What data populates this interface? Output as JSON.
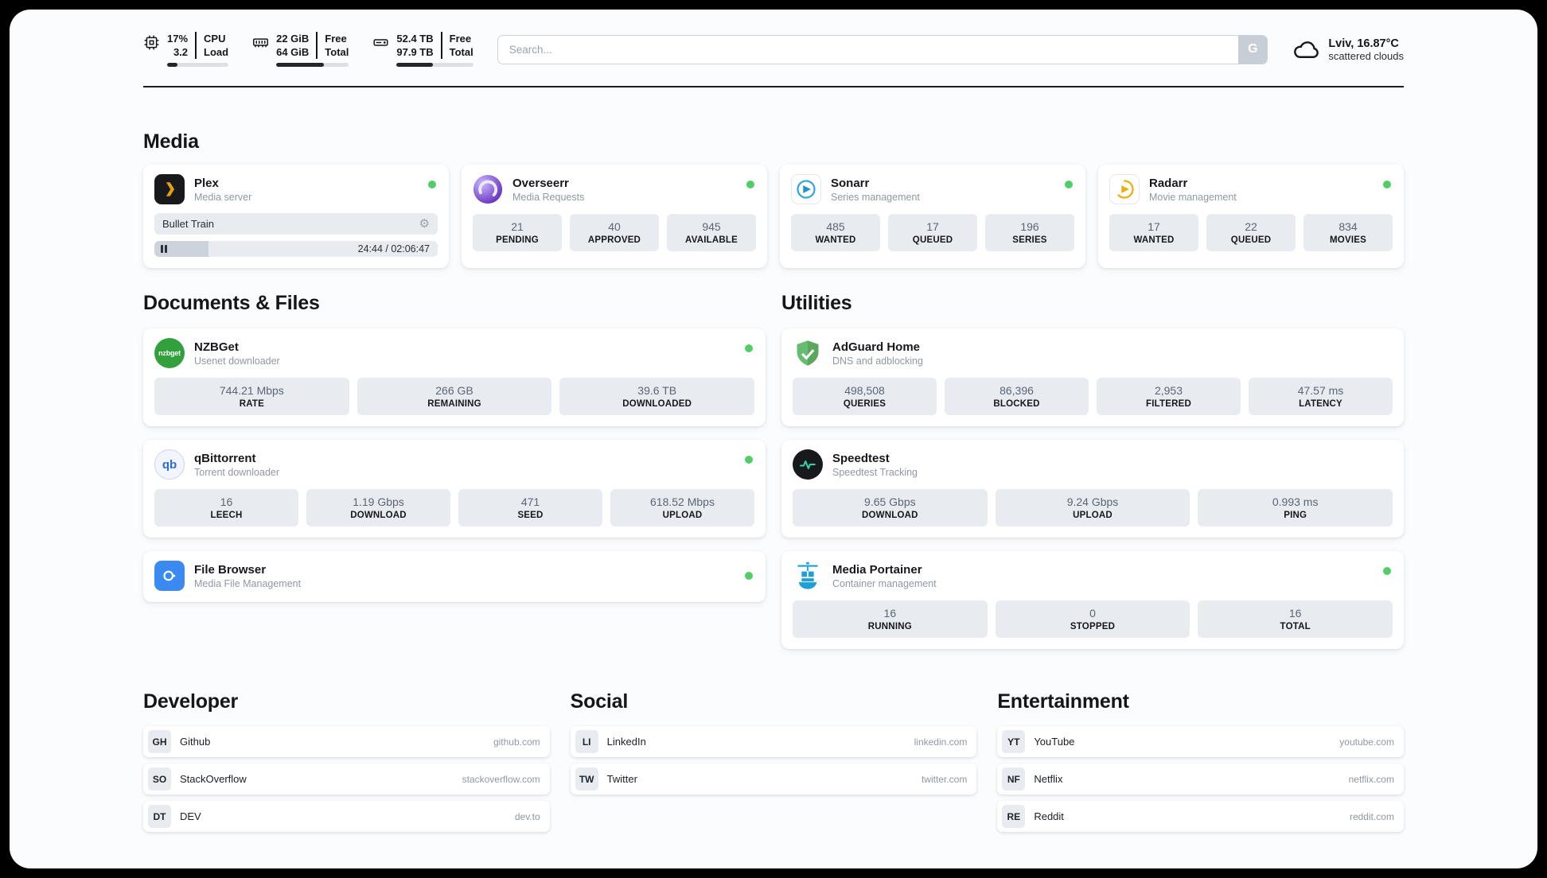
{
  "header": {
    "cpu": {
      "value1": "17%",
      "label1": "CPU",
      "value2": "3.2",
      "label2": "Load",
      "bar_percent": 17
    },
    "ram": {
      "value1": "22 GiB",
      "label1": "Free",
      "value2": "64 GiB",
      "label2": "Total",
      "bar_percent": 66
    },
    "disk": {
      "value1": "52.4 TB",
      "label1": "Free",
      "value2": "97.9 TB",
      "label2": "Total",
      "bar_percent": 47
    },
    "search": {
      "placeholder": "Search...",
      "button_label": "G"
    },
    "weather": {
      "location": "Lviv, 16.87°C",
      "condition": "scattered clouds"
    }
  },
  "media": {
    "title": "Media",
    "apps": [
      {
        "name": "Plex",
        "subtitle": "Media server",
        "online": true,
        "now_playing": {
          "title": "Bullet Train",
          "time_display": "24:44 / 02:06:47",
          "progress_percent": 19
        }
      },
      {
        "name": "Overseerr",
        "subtitle": "Media Requests",
        "online": true,
        "stats": [
          {
            "value": "21",
            "label": "PENDING"
          },
          {
            "value": "40",
            "label": "APPROVED"
          },
          {
            "value": "945",
            "label": "AVAILABLE"
          }
        ]
      },
      {
        "name": "Sonarr",
        "subtitle": "Series management",
        "online": true,
        "stats": [
          {
            "value": "485",
            "label": "WANTED"
          },
          {
            "value": "17",
            "label": "QUEUED"
          },
          {
            "value": "196",
            "label": "SERIES"
          }
        ]
      },
      {
        "name": "Radarr",
        "subtitle": "Movie management",
        "online": true,
        "stats": [
          {
            "value": "17",
            "label": "WANTED"
          },
          {
            "value": "22",
            "label": "QUEUED"
          },
          {
            "value": "834",
            "label": "MOVIES"
          }
        ]
      }
    ]
  },
  "documents": {
    "title": "Documents & Files",
    "apps": [
      {
        "name": "NZBGet",
        "subtitle": "Usenet downloader",
        "online": true,
        "stats": [
          {
            "value": "744.21 Mbps",
            "label": "RATE"
          },
          {
            "value": "266 GB",
            "label": "REMAINING"
          },
          {
            "value": "39.6 TB",
            "label": "DOWNLOADED"
          }
        ]
      },
      {
        "name": "qBittorrent",
        "subtitle": "Torrent downloader",
        "online": true,
        "stats": [
          {
            "value": "16",
            "label": "LEECH"
          },
          {
            "value": "1.19 Gbps",
            "label": "DOWNLOAD"
          },
          {
            "value": "471",
            "label": "SEED"
          },
          {
            "value": "618.52 Mbps",
            "label": "UPLOAD"
          }
        ]
      },
      {
        "name": "File Browser",
        "subtitle": "Media File Management",
        "online": true,
        "stats": []
      }
    ]
  },
  "utilities": {
    "title": "Utilities",
    "apps": [
      {
        "name": "AdGuard Home",
        "subtitle": "DNS and adblocking",
        "online": false,
        "stats": [
          {
            "value": "498,508",
            "label": "QUERIES"
          },
          {
            "value": "86,396",
            "label": "BLOCKED"
          },
          {
            "value": "2,953",
            "label": "FILTERED"
          },
          {
            "value": "47.57 ms",
            "label": "LATENCY"
          }
        ]
      },
      {
        "name": "Speedtest",
        "subtitle": "Speedtest Tracking",
        "online": false,
        "stats": [
          {
            "value": "9.65 Gbps",
            "label": "DOWNLOAD"
          },
          {
            "value": "9.24 Gbps",
            "label": "UPLOAD"
          },
          {
            "value": "0.993 ms",
            "label": "PING"
          }
        ]
      },
      {
        "name": "Media Portainer",
        "subtitle": "Container management",
        "online": true,
        "stats": [
          {
            "value": "16",
            "label": "RUNNING"
          },
          {
            "value": "0",
            "label": "STOPPED"
          },
          {
            "value": "16",
            "label": "TOTAL"
          }
        ]
      }
    ]
  },
  "bookmarks": [
    {
      "title": "Developer",
      "items": [
        {
          "abbr": "GH",
          "name": "Github",
          "url": "github.com"
        },
        {
          "abbr": "SO",
          "name": "StackOverflow",
          "url": "stackoverflow.com"
        },
        {
          "abbr": "DT",
          "name": "DEV",
          "url": "dev.to"
        }
      ]
    },
    {
      "title": "Social",
      "items": [
        {
          "abbr": "LI",
          "name": "LinkedIn",
          "url": "linkedin.com"
        },
        {
          "abbr": "TW",
          "name": "Twitter",
          "url": "twitter.com"
        }
      ]
    },
    {
      "title": "Entertainment",
      "items": [
        {
          "abbr": "YT",
          "name": "YouTube",
          "url": "youtube.com"
        },
        {
          "abbr": "NF",
          "name": "Netflix",
          "url": "netflix.com"
        },
        {
          "abbr": "RE",
          "name": "Reddit",
          "url": "reddit.com"
        }
      ]
    }
  ],
  "colors": {
    "online": "#51cf66",
    "stat_bg": "#e8ecf1",
    "bar_fill": "#23262d"
  }
}
